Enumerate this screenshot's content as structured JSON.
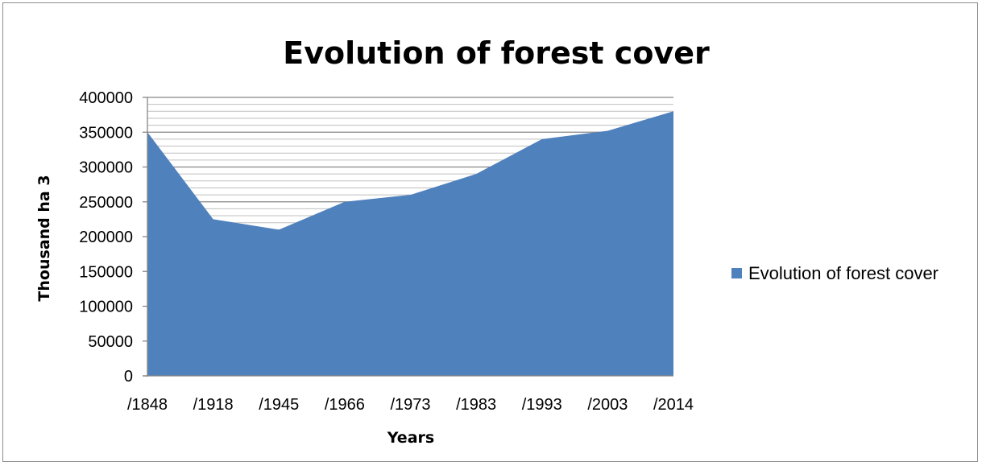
{
  "chart_data": {
    "type": "area",
    "title": "Evolution of forest cover",
    "xlabel": "Years",
    "ylabel": "Thousand ha 3",
    "categories": [
      "/1848",
      "/1918",
      "/1945",
      "/1966",
      "/1973",
      "/1983",
      "/1993",
      "/2003",
      "/2014"
    ],
    "series": [
      {
        "name": "Evolution of forest cover",
        "values": [
          350000,
          225000,
          210000,
          250000,
          260000,
          290000,
          340000,
          352000,
          380000
        ],
        "color": "#4f81bd"
      }
    ],
    "ylim": [
      0,
      400000
    ],
    "yticks": [
      0,
      50000,
      100000,
      150000,
      200000,
      250000,
      300000,
      350000,
      400000
    ],
    "major_grid_color": "#868686",
    "minor_grid_color": "#bfbfbf",
    "grid": true,
    "minor_grid": true,
    "legend_position": "right"
  }
}
